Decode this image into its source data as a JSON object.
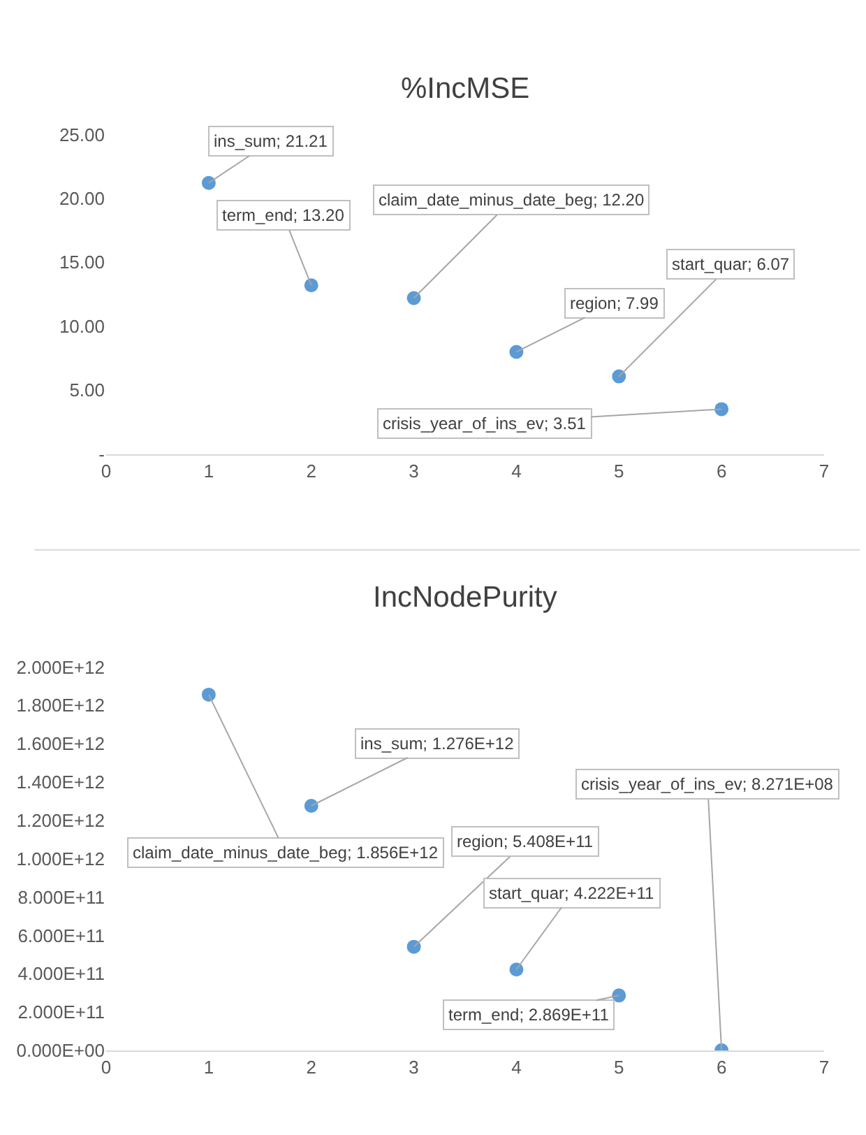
{
  "chart_data": [
    {
      "type": "scatter",
      "title": "%IncMSE",
      "x": [
        1,
        2,
        3,
        4,
        5,
        6
      ],
      "series": [
        {
          "color": "#5b9bd5",
          "values": [
            21.21,
            13.2,
            12.2,
            7.99,
            6.07,
            3.51
          ]
        }
      ],
      "xlim": [
        0,
        7
      ],
      "xticks": [
        0,
        1,
        2,
        3,
        4,
        5,
        6,
        7
      ],
      "ylim": [
        0,
        25
      ],
      "yticks": [
        {
          "value": 0,
          "label": "-"
        },
        {
          "value": 5,
          "label": "5.00"
        },
        {
          "value": 10,
          "label": "10.00"
        },
        {
          "value": 15,
          "label": "15.00"
        },
        {
          "value": 20,
          "label": "20.00"
        },
        {
          "value": 25,
          "label": "25.00"
        }
      ],
      "annotations": [
        {
          "text": "ins_sum; 21.21",
          "x": 1,
          "y": 21.21
        },
        {
          "text": "term_end; 13.20",
          "x": 2,
          "y": 13.2
        },
        {
          "text": "claim_date_minus_date_beg; 12.20",
          "x": 3,
          "y": 12.2
        },
        {
          "text": "region; 7.99",
          "x": 4,
          "y": 7.99
        },
        {
          "text": "start_quar; 6.07",
          "x": 5,
          "y": 6.07
        },
        {
          "text": "crisis_year_of_ins_ev; 3.51",
          "x": 6,
          "y": 3.51
        }
      ],
      "marker": "circle"
    },
    {
      "type": "scatter",
      "title": "IncNodePurity",
      "x": [
        1,
        2,
        3,
        4,
        5,
        6
      ],
      "series": [
        {
          "color": "#5b9bd5",
          "values": [
            1856000000000.0,
            1276000000000.0,
            540800000000.0,
            422200000000.0,
            286900000000.0,
            827100000.0
          ]
        }
      ],
      "xlim": [
        0,
        7
      ],
      "xticks": [
        0,
        1,
        2,
        3,
        4,
        5,
        6,
        7
      ],
      "ylim": [
        0,
        2000000000000.0
      ],
      "yticks": [
        {
          "value": 0,
          "label": "0.000E+00"
        },
        {
          "value": 200000000000.0,
          "label": "2.000E+11"
        },
        {
          "value": 400000000000.0,
          "label": "4.000E+11"
        },
        {
          "value": 600000000000.0,
          "label": "6.000E+11"
        },
        {
          "value": 800000000000.0,
          "label": "8.000E+11"
        },
        {
          "value": 1000000000000.0,
          "label": "1.000E+12"
        },
        {
          "value": 1200000000000.0,
          "label": "1.200E+12"
        },
        {
          "value": 1400000000000.0,
          "label": "1.400E+12"
        },
        {
          "value": 1600000000000.0,
          "label": "1.600E+12"
        },
        {
          "value": 1800000000000.0,
          "label": "1.800E+12"
        },
        {
          "value": 2000000000000.0,
          "label": "2.000E+12"
        }
      ],
      "annotations": [
        {
          "text": "claim_date_minus_date_beg; 1.856E+12",
          "x": 1,
          "y": 1856000000000.0
        },
        {
          "text": "ins_sum; 1.276E+12",
          "x": 2,
          "y": 1276000000000.0
        },
        {
          "text": "region; 5.408E+11",
          "x": 3,
          "y": 540800000000.0
        },
        {
          "text": "start_quar; 4.222E+11",
          "x": 4,
          "y": 422200000000.0
        },
        {
          "text": "term_end; 2.869E+11",
          "x": 5,
          "y": 286900000000.0
        },
        {
          "text": "crisis_year_of_ins_ev; 8.271E+08",
          "x": 6,
          "y": 827100000.0
        }
      ],
      "marker": "circle"
    }
  ]
}
